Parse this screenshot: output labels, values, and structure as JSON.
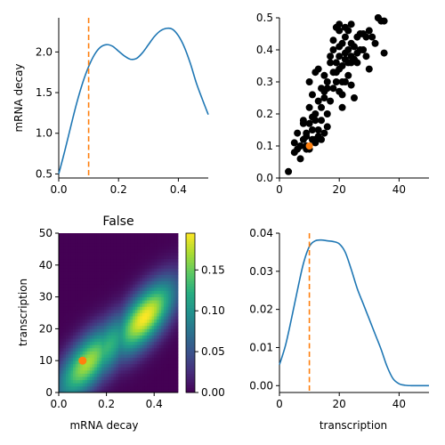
{
  "chart_data": [
    {
      "type": "line",
      "panel": "top-left",
      "title": "",
      "xlabel": "",
      "ylabel": "mRNA decay",
      "xlim": [
        0,
        0.5
      ],
      "ylim": [
        0.45,
        2.42
      ],
      "xticks": [
        "0.0",
        "0.2",
        "0.4"
      ],
      "xtick_values": [
        0,
        0.2,
        0.4
      ],
      "yticks": [
        "0.5",
        "1.0",
        "1.5",
        "2.0"
      ],
      "ytick_values": [
        0.5,
        1.0,
        1.5,
        2.0
      ],
      "series": [
        {
          "color": "#1f77b4",
          "x": [
            0,
            0.02,
            0.04,
            0.06,
            0.08,
            0.1,
            0.12,
            0.14,
            0.16,
            0.18,
            0.2,
            0.22,
            0.24,
            0.26,
            0.28,
            0.3,
            0.32,
            0.34,
            0.36,
            0.38,
            0.4,
            0.42,
            0.44,
            0.46,
            0.48,
            0.5
          ],
          "y": [
            0.5,
            0.78,
            1.08,
            1.37,
            1.62,
            1.82,
            1.97,
            2.06,
            2.09,
            2.07,
            2.01,
            1.95,
            1.91,
            1.92,
            1.99,
            2.09,
            2.19,
            2.26,
            2.29,
            2.28,
            2.2,
            2.06,
            1.86,
            1.62,
            1.42,
            1.23
          ]
        }
      ],
      "vline": {
        "x": 0.1,
        "color": "#ff7f0e",
        "style": "dashed"
      }
    },
    {
      "type": "scatter",
      "panel": "top-right",
      "title": "",
      "xlabel": "",
      "ylabel": "",
      "xlim": [
        0,
        50
      ],
      "ylim": [
        0,
        0.5
      ],
      "xticks": [
        "0",
        "20",
        "40"
      ],
      "xtick_values": [
        0,
        20,
        40
      ],
      "yticks": [
        "0.0",
        "0.1",
        "0.2",
        "0.3",
        "0.4",
        "0.5"
      ],
      "ytick_values": [
        0,
        0.1,
        0.2,
        0.3,
        0.4,
        0.5
      ],
      "series": [
        {
          "color": "#000000",
          "points": [
            [
              3,
              0.02
            ],
            [
              5,
              0.11
            ],
            [
              5,
              0.08
            ],
            [
              6,
              0.09
            ],
            [
              7,
              0.06
            ],
            [
              8,
              0.17
            ],
            [
              9,
              0.1
            ],
            [
              10,
              0.09
            ],
            [
              9,
              0.13
            ],
            [
              11,
              0.12
            ],
            [
              12,
              0.12
            ],
            [
              7,
              0.1
            ],
            [
              13,
              0.15
            ],
            [
              14,
              0.12
            ],
            [
              12,
              0.11
            ],
            [
              10,
              0.17
            ],
            [
              8,
              0.18
            ],
            [
              9,
              0.14
            ],
            [
              11,
              0.19
            ],
            [
              12,
              0.2
            ],
            [
              10,
              0.22
            ],
            [
              11,
              0.26
            ],
            [
              10,
              0.3
            ],
            [
              13,
              0.24
            ],
            [
              14,
              0.28
            ],
            [
              12,
              0.33
            ],
            [
              13,
              0.34
            ],
            [
              15,
              0.32
            ],
            [
              16,
              0.28
            ],
            [
              14,
              0.22
            ],
            [
              15,
              0.25
            ],
            [
              16,
              0.2
            ],
            [
              17,
              0.24
            ],
            [
              18,
              0.28
            ],
            [
              19,
              0.3
            ],
            [
              20,
              0.27
            ],
            [
              21,
              0.26
            ],
            [
              18,
              0.33
            ],
            [
              19,
              0.36
            ],
            [
              20,
              0.38
            ],
            [
              21,
              0.35
            ],
            [
              22,
              0.37
            ],
            [
              23,
              0.36
            ],
            [
              24,
              0.38
            ],
            [
              22,
              0.3
            ],
            [
              21,
              0.22
            ],
            [
              24,
              0.29
            ],
            [
              25,
              0.25
            ],
            [
              23,
              0.4
            ],
            [
              24,
              0.42
            ],
            [
              25,
              0.41
            ],
            [
              22,
              0.44
            ],
            [
              21,
              0.42
            ],
            [
              20,
              0.41
            ],
            [
              18,
              0.43
            ],
            [
              19,
              0.47
            ],
            [
              20,
              0.48
            ],
            [
              22,
              0.47
            ],
            [
              23,
              0.46
            ],
            [
              24,
              0.48
            ],
            [
              26,
              0.44
            ],
            [
              27,
              0.4
            ],
            [
              28,
              0.4
            ],
            [
              27,
              0.45
            ],
            [
              28,
              0.45
            ],
            [
              29,
              0.38
            ],
            [
              30,
              0.34
            ],
            [
              31,
              0.44
            ],
            [
              32,
              0.42
            ],
            [
              33,
              0.5
            ],
            [
              34,
              0.49
            ],
            [
              35,
              0.49
            ],
            [
              35,
              0.39
            ],
            [
              33,
              0.5
            ],
            [
              30,
              0.46
            ],
            [
              29,
              0.44
            ],
            [
              26,
              0.39
            ],
            [
              25,
              0.37
            ],
            [
              20,
              0.34
            ],
            [
              19,
              0.33
            ],
            [
              17,
              0.36
            ],
            [
              16,
              0.3
            ],
            [
              15,
              0.27
            ],
            [
              18,
              0.4
            ],
            [
              20,
              0.46
            ],
            [
              22,
              0.39
            ],
            [
              24,
              0.36
            ],
            [
              23,
              0.32
            ],
            [
              26,
              0.36
            ],
            [
              21,
              0.3
            ],
            [
              17,
              0.38
            ],
            [
              14,
              0.18
            ],
            [
              16,
              0.16
            ],
            [
              15,
              0.14
            ],
            [
              13,
              0.13
            ],
            [
              11,
              0.15
            ],
            [
              9,
              0.09
            ],
            [
              8,
              0.12
            ],
            [
              6,
              0.14
            ],
            [
              12,
              0.18
            ]
          ]
        }
      ],
      "highlight": {
        "x": 10,
        "y": 0.1,
        "color": "#ff7f0e"
      }
    },
    {
      "type": "heatmap",
      "panel": "bottom-left",
      "title": "False",
      "xlabel": "mRNA decay",
      "ylabel": "transcription",
      "xlim": [
        0,
        0.5
      ],
      "ylim": [
        0,
        50
      ],
      "xticks": [
        "0.0",
        "0.2",
        "0.4"
      ],
      "xtick_values": [
        0,
        0.2,
        0.4
      ],
      "yticks": [
        "0",
        "10",
        "20",
        "30",
        "40",
        "50"
      ],
      "ytick_values": [
        0,
        10,
        20,
        30,
        40,
        50
      ],
      "colorbar": {
        "ticks": [
          "0.00",
          "0.05",
          "0.10",
          "0.15"
        ],
        "tick_values": [
          0,
          0.05,
          0.1,
          0.15
        ],
        "vmin": 0,
        "vmax": 0.195
      },
      "density_ridge": {
        "slope_transcription_per_decay": 60,
        "intercept": 2,
        "peaks": [
          [
            0.12,
            10,
            0.17
          ],
          [
            0.2,
            15,
            0.13
          ],
          [
            0.36,
            23,
            0.195
          ]
        ],
        "width_transcription": 6
      },
      "grid_cells": 50,
      "highlight": {
        "x": 0.1,
        "y": 10,
        "color": "#ff7f0e"
      }
    },
    {
      "type": "line",
      "panel": "bottom-right",
      "title": "",
      "xlabel": "transcription",
      "ylabel": "",
      "xlim": [
        0,
        50
      ],
      "ylim": [
        -0.0018,
        0.04
      ],
      "xticks": [
        "0",
        "20",
        "40"
      ],
      "xtick_values": [
        0,
        20,
        40
      ],
      "yticks": [
        "0.00",
        "0.01",
        "0.02",
        "0.03",
        "0.04"
      ],
      "ytick_values": [
        0,
        0.01,
        0.02,
        0.03,
        0.04
      ],
      "series": [
        {
          "color": "#1f77b4",
          "x": [
            0,
            2,
            4,
            6,
            8,
            10,
            12,
            14,
            16,
            18,
            20,
            22,
            24,
            26,
            28,
            30,
            32,
            34,
            36,
            38,
            40,
            42,
            44,
            46,
            48,
            50
          ],
          "y": [
            0.0055,
            0.0105,
            0.0175,
            0.025,
            0.032,
            0.0365,
            0.038,
            0.0382,
            0.038,
            0.0378,
            0.0372,
            0.035,
            0.0305,
            0.0255,
            0.0215,
            0.0175,
            0.0135,
            0.0095,
            0.005,
            0.0018,
            0.0005,
            0.0001,
            0.0,
            0.0,
            0.0,
            0.0
          ]
        }
      ],
      "vline": {
        "x": 10,
        "color": "#ff7f0e",
        "style": "dashed"
      }
    }
  ]
}
